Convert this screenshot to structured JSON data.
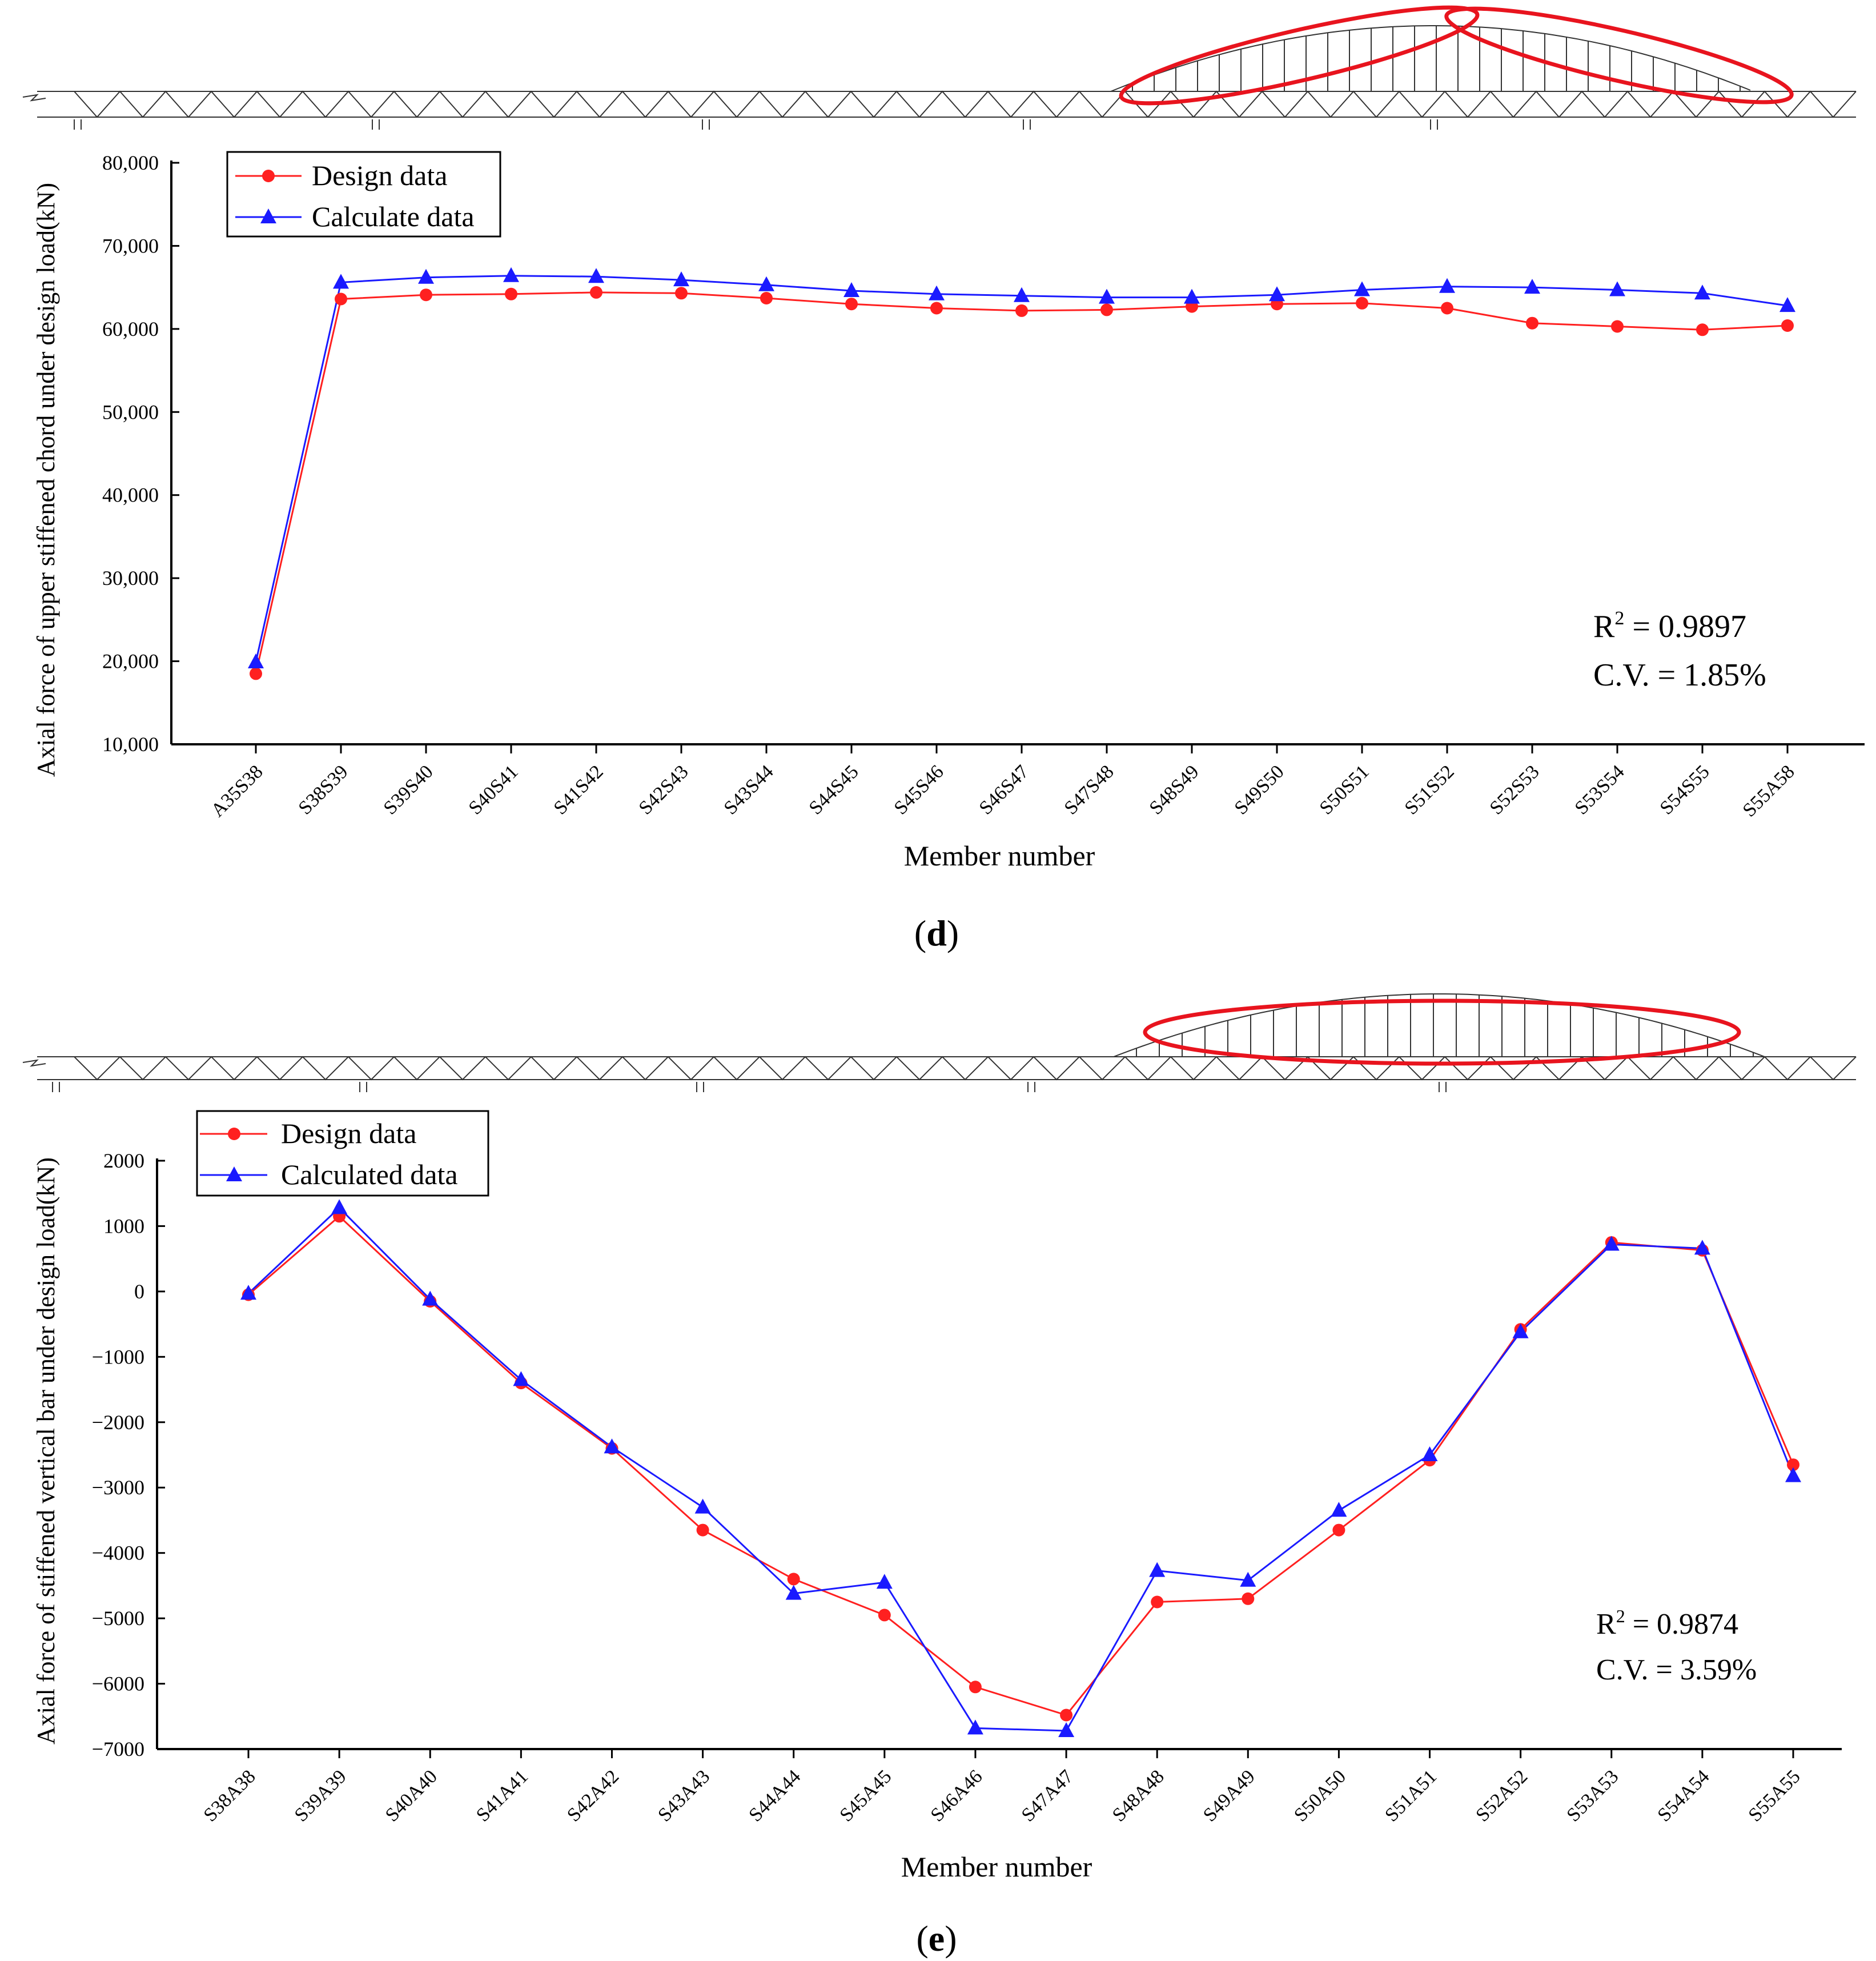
{
  "colors": {
    "design": "#ff2020",
    "calculate": "#1a1aff",
    "highlight": "#e8141e",
    "truss": "#333333"
  },
  "chart_data": [
    {
      "panel_label": "d",
      "type": "line",
      "title": "",
      "xlabel": "Member number",
      "ylabel": "Axial force of upper stiffened chord under design load(kN)",
      "ylim": [
        10000,
        80000
      ],
      "yticks": [
        "10,000",
        "20,000",
        "30,000",
        "40,000",
        "50,000",
        "60,000",
        "70,000",
        "80,000"
      ],
      "grid": false,
      "legend_position": "top-left",
      "categories": [
        "A35S38",
        "S38S39",
        "S39S40",
        "S40S41",
        "S41S42",
        "S42S43",
        "S43S44",
        "S44S45",
        "S45S46",
        "S46S47",
        "S47S48",
        "S48S49",
        "S49S50",
        "S50S51",
        "S51S52",
        "S52S53",
        "S53S54",
        "S54S55",
        "S55A58"
      ],
      "series": [
        {
          "name": "Design data",
          "marker": "circle",
          "values": [
            18500,
            63600,
            64100,
            64200,
            64400,
            64300,
            63700,
            63000,
            62500,
            62200,
            62300,
            62700,
            63000,
            63100,
            62500,
            60700,
            60300,
            59900,
            60400
          ]
        },
        {
          "name": "Calculate data",
          "marker": "triangle",
          "values": [
            19900,
            65600,
            66200,
            66400,
            66300,
            65900,
            65300,
            64600,
            64200,
            64000,
            63800,
            63800,
            64100,
            64700,
            65100,
            65000,
            64700,
            64300,
            62800
          ]
        }
      ],
      "annotation": {
        "r2_label": "R",
        "r2_sup": "2",
        "r2_value": " = 0.9897",
        "cv": "C.V. = 1.85%"
      }
    },
    {
      "panel_label": "e",
      "type": "line",
      "title": "",
      "xlabel": "Member number",
      "ylabel": "Axial force of stiffened vertical bar under design load(kN)",
      "ylim": [
        -7000,
        2000
      ],
      "yticks": [
        "−7000",
        "−6000",
        "−5000",
        "−4000",
        "−3000",
        "−2000",
        "−1000",
        "0",
        "1000",
        "2000"
      ],
      "grid": false,
      "legend_position": "top-left",
      "categories": [
        "S38A38",
        "S39A39",
        "S40A40",
        "S41A41",
        "S42A42",
        "S43A43",
        "S44A44",
        "S45A45",
        "S46A46",
        "S47A47",
        "S48A48",
        "S49A49",
        "S50A50",
        "S51A51",
        "S52A52",
        "S53A53",
        "S54A54",
        "S55A55"
      ],
      "series": [
        {
          "name": "Design data",
          "marker": "circle",
          "values": [
            -50,
            1150,
            -150,
            -1400,
            -2400,
            -3650,
            -4400,
            -4950,
            -6050,
            -6480,
            -4750,
            -4700,
            -3650,
            -2580,
            -580,
            750,
            630,
            -2650
          ]
        },
        {
          "name": "Calculated data",
          "marker": "triangle",
          "values": [
            -30,
            1280,
            -120,
            -1350,
            -2380,
            -3300,
            -4620,
            -4450,
            -6680,
            -6720,
            -4270,
            -4420,
            -3350,
            -2500,
            -620,
            720,
            660,
            -2820
          ]
        }
      ],
      "annotation": {
        "r2_label": "R",
        "r2_sup": "2",
        "r2_value": " = 0.9874",
        "cv": "C.V. = 3.59%"
      }
    }
  ]
}
